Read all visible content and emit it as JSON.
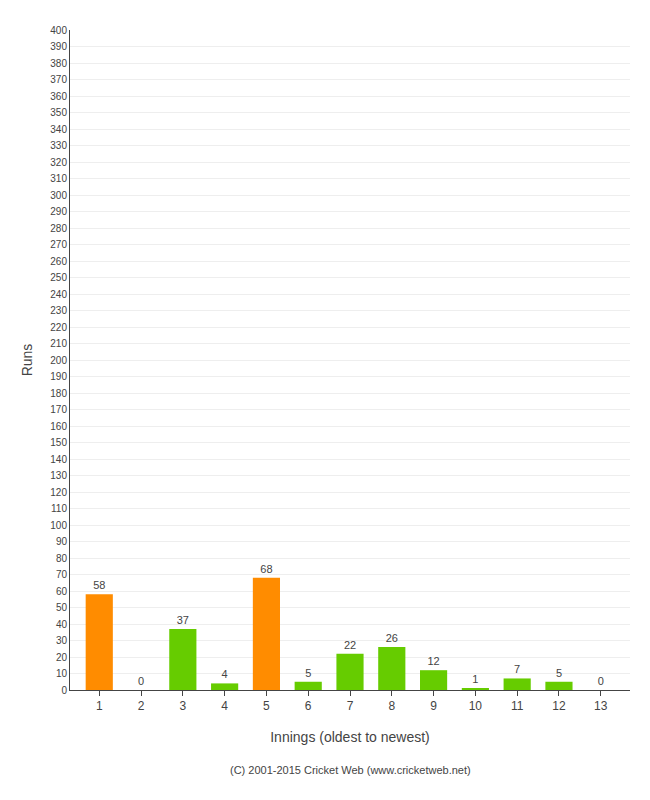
{
  "chart_data": {
    "type": "bar",
    "x_label": "Innings (oldest to newest)",
    "y_label": "Runs",
    "x": [
      1,
      2,
      3,
      4,
      5,
      6,
      7,
      8,
      9,
      10,
      11,
      12,
      13
    ],
    "values": [
      58,
      0,
      37,
      4,
      68,
      5,
      22,
      26,
      12,
      1,
      7,
      5,
      0
    ],
    "colors": [
      "#FF8C00",
      "#66CC00",
      "#66CC00",
      "#66CC00",
      "#FF8C00",
      "#66CC00",
      "#66CC00",
      "#66CC00",
      "#66CC00",
      "#66CC00",
      "#66CC00",
      "#66CC00",
      "#66CC00"
    ],
    "xlim": [
      0.3,
      13.7
    ],
    "xticks": [
      1,
      2,
      3,
      4,
      5,
      6,
      7,
      8,
      9,
      10,
      11,
      12,
      13
    ],
    "ylim": [
      0,
      400
    ],
    "yticks": [
      0,
      10,
      20,
      30,
      40,
      50,
      60,
      70,
      80,
      90,
      100,
      110,
      120,
      130,
      140,
      150,
      160,
      170,
      180,
      190,
      200,
      210,
      220,
      230,
      240,
      250,
      260,
      270,
      280,
      290,
      300,
      310,
      320,
      330,
      340,
      350,
      360,
      370,
      380,
      390,
      400
    ],
    "grid": true,
    "data_labels": true,
    "annotations": [
      "(C) 2001-2015 Cricket Web (www.cricketweb.net)"
    ]
  }
}
